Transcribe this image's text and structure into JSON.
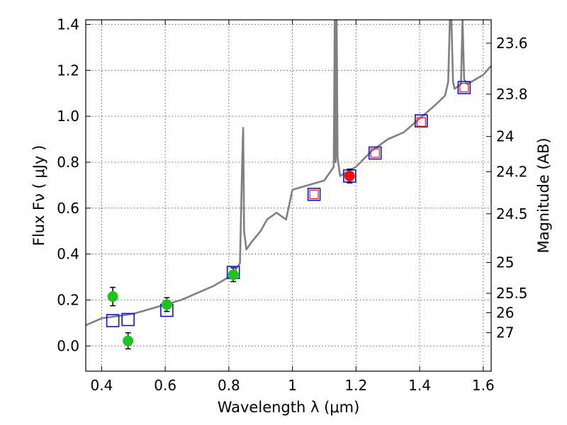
{
  "chart_data": {
    "type": "scatter",
    "title": "",
    "xlabel": "Wavelength  λ (μm)",
    "ylabel": "Flux  Fν  ( μJy )",
    "y2label": "Magnitude (AB)",
    "xlim": [
      0.35,
      1.625
    ],
    "ylim": [
      -0.11,
      1.42
    ],
    "grid": true,
    "x_ticks": [
      0.4,
      0.6,
      0.8,
      1.0,
      1.2,
      1.4,
      1.6
    ],
    "x_tick_labels": [
      "0.4",
      "0.6",
      "0.8",
      "1",
      "1.2",
      "1.4",
      "1.6"
    ],
    "y_ticks": [
      0.0,
      0.2,
      0.4,
      0.6,
      0.8,
      1.0,
      1.2,
      1.4
    ],
    "y_tick_labels": [
      "0.0",
      "0.2",
      "0.4",
      "0.6",
      "0.8",
      "1.0",
      "1.2",
      "1.4"
    ],
    "magnitude_ticks": [
      "23.6",
      "23.8",
      "24",
      "24.2",
      "24.5",
      "25",
      "25.5",
      "26",
      "27"
    ],
    "colors": {
      "model": "#808080",
      "optical_points": "#1ec31e",
      "nir_points": "#ee1111",
      "model_boxes": "#1111dd",
      "error_bars": "#000000"
    },
    "series": [
      {
        "name": "model spectrum",
        "style": "line",
        "x": [
          0.35,
          0.4,
          0.45,
          0.5,
          0.55,
          0.6,
          0.65,
          0.7,
          0.75,
          0.8,
          0.82,
          0.835,
          0.842,
          0.845,
          0.848,
          0.855,
          0.87,
          0.9,
          0.92,
          0.95,
          0.98,
          1.0,
          1.05,
          1.1,
          1.13,
          1.133,
          1.136,
          1.139,
          1.142,
          1.15,
          1.2,
          1.25,
          1.3,
          1.35,
          1.4,
          1.45,
          1.48,
          1.49,
          1.495,
          1.5,
          1.505,
          1.51,
          1.53,
          1.535,
          1.54,
          1.55,
          1.6,
          1.625
        ],
        "y": [
          0.09,
          0.12,
          0.13,
          0.14,
          0.16,
          0.18,
          0.2,
          0.23,
          0.26,
          0.3,
          0.33,
          0.36,
          0.8,
          0.95,
          0.5,
          0.42,
          0.45,
          0.5,
          0.55,
          0.58,
          0.55,
          0.68,
          0.7,
          0.72,
          0.78,
          1.42,
          0.8,
          1.42,
          0.82,
          0.74,
          0.78,
          0.85,
          0.9,
          0.93,
          0.99,
          1.05,
          1.09,
          1.15,
          1.42,
          1.42,
          1.15,
          1.12,
          1.14,
          1.42,
          1.16,
          1.14,
          1.18,
          1.22
        ]
      },
      {
        "name": "optical photometry",
        "style": "point",
        "x": [
          0.435,
          0.483,
          0.605,
          0.814
        ],
        "y": [
          0.215,
          0.022,
          0.18,
          0.31
        ],
        "err": [
          0.04,
          0.035,
          0.03,
          0.03
        ]
      },
      {
        "name": "NIR photometry",
        "style": "point",
        "x": [
          1.18
        ],
        "y": [
          0.74
        ],
        "err": [
          0.03
        ]
      },
      {
        "name": "model photometry",
        "style": "open-square",
        "x": [
          0.435,
          0.483,
          0.605,
          0.814,
          1.068,
          1.18,
          1.26,
          1.405,
          1.54
        ],
        "y": [
          0.11,
          0.115,
          0.155,
          0.32,
          0.66,
          0.74,
          0.84,
          0.98,
          1.125
        ]
      },
      {
        "name": "NIR synthetic photometry",
        "style": "small-open-square",
        "x": [
          1.068,
          1.26,
          1.405,
          1.54
        ],
        "y": [
          0.66,
          0.84,
          0.975,
          1.125
        ]
      }
    ]
  }
}
